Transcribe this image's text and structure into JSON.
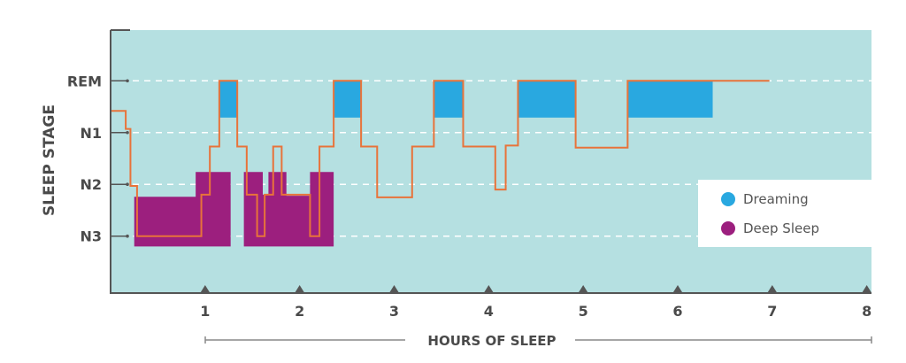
{
  "chart_data": {
    "type": "line",
    "xlabel": "HOURS OF SLEEP",
    "ylabel": "SLEEP STAGE",
    "x_ticks": [
      "1",
      "2",
      "3",
      "4",
      "5",
      "6",
      "7",
      "8"
    ],
    "xlim": [
      0,
      8.05
    ],
    "y_categories": [
      "REM",
      "N1",
      "N2",
      "N3"
    ],
    "y_depth_scale": {
      "REM": 0,
      "N1": 1,
      "N2": 2,
      "N3": 3
    },
    "ylim_depth": [
      -0.98,
      4.1
    ],
    "grid": "dashed horizontal at each stage",
    "legend_position": "right",
    "legend": [
      {
        "label": "Dreaming",
        "color": "#29a8e0"
      },
      {
        "label": "Deep Sleep",
        "color": "#9c1f7e"
      }
    ],
    "colors": {
      "background": "#b5e0e1",
      "line": "#e8733a",
      "axis": "#555555"
    },
    "hypnogram_steps": [
      [
        0.0,
        0.58
      ],
      [
        0.16,
        0.93
      ],
      [
        0.21,
        2.03
      ],
      [
        0.28,
        3.0
      ],
      [
        0.96,
        2.2
      ],
      [
        1.05,
        1.27
      ],
      [
        1.15,
        0.0
      ],
      [
        1.34,
        1.27
      ],
      [
        1.44,
        2.2
      ],
      [
        1.55,
        3.0
      ],
      [
        1.63,
        2.2
      ],
      [
        1.72,
        1.27
      ],
      [
        1.81,
        2.2
      ],
      [
        2.11,
        3.0
      ],
      [
        2.21,
        1.27
      ],
      [
        2.36,
        0.0
      ],
      [
        2.65,
        1.27
      ],
      [
        2.82,
        2.25
      ],
      [
        3.19,
        1.27
      ],
      [
        3.42,
        0.0
      ],
      [
        3.73,
        1.27
      ],
      [
        4.07,
        2.1
      ],
      [
        4.18,
        1.25
      ],
      [
        4.31,
        0.0
      ],
      [
        4.92,
        1.29
      ],
      [
        5.47,
        0.0
      ]
    ],
    "hypnogram_end": 6.97,
    "dreaming_periods": [
      {
        "start": 1.15,
        "end": 1.34
      },
      {
        "start": 2.36,
        "end": 2.65
      },
      {
        "start": 3.42,
        "end": 3.73
      },
      {
        "start": 4.31,
        "end": 4.92
      },
      {
        "start": 5.47,
        "end": 6.37
      }
    ],
    "dreaming_depth_range": [
      0,
      0.71
    ],
    "deep_sleep_periods": [
      {
        "blocks": [
          [
            0.25,
            0.9,
            2.24
          ],
          [
            0.9,
            1.27,
            1.76
          ]
        ]
      },
      {
        "blocks": [
          [
            1.41,
            1.61,
            1.76
          ],
          [
            1.61,
            1.67,
            2.2
          ],
          [
            1.67,
            1.86,
            1.76
          ],
          [
            1.86,
            2.11,
            2.22
          ],
          [
            2.11,
            2.36,
            1.76
          ]
        ]
      }
    ],
    "deep_sleep_bottom_depth": 3.2
  }
}
